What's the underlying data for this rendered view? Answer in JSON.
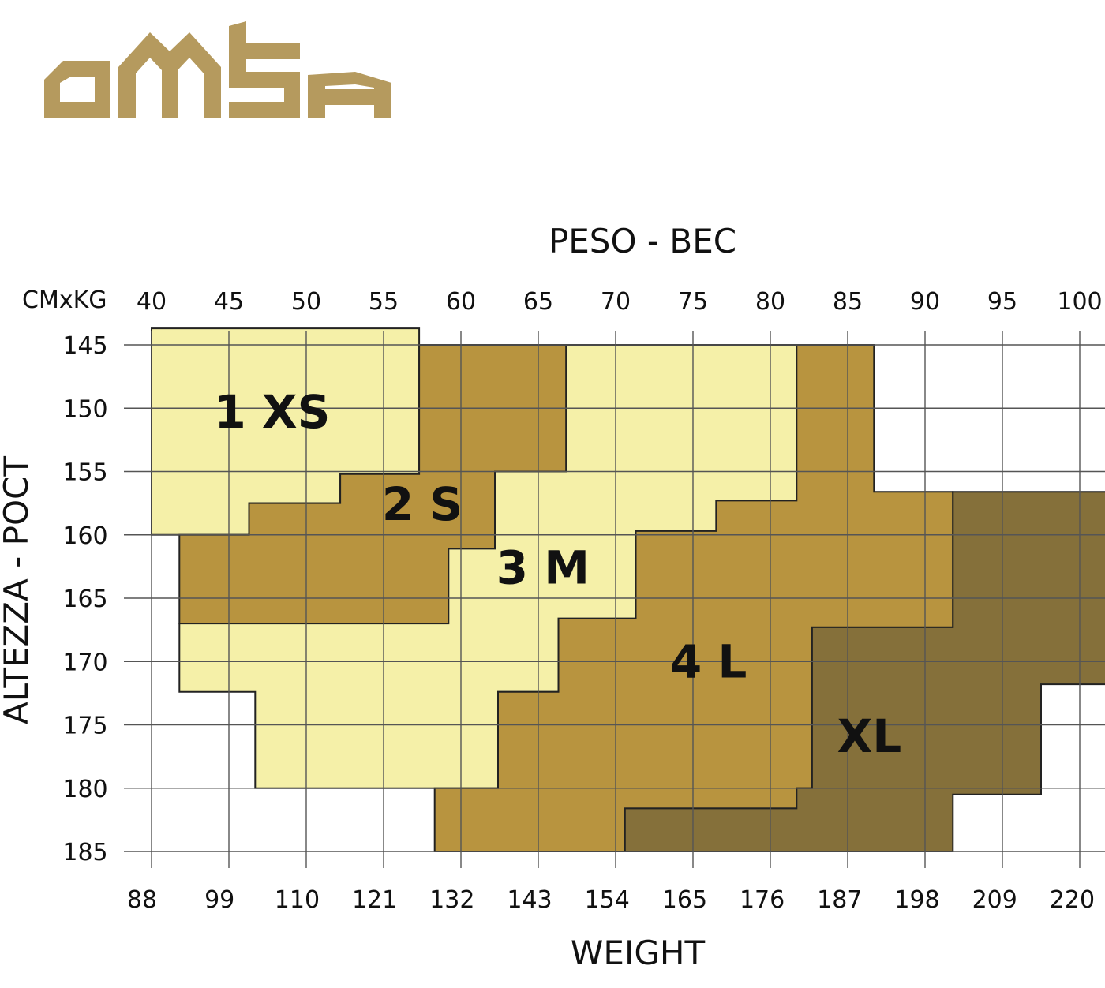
{
  "brand": {
    "logo_text": "OMSA",
    "logo_color": "#B59A5E"
  },
  "chart_data": {
    "type": "heatmap",
    "title": "",
    "top_axis_title": "PESO - BEC",
    "corner_label": "CMxKG",
    "bottom_axis_title": "WEIGHT",
    "y_axis_title": "ALTEZZA - POCT",
    "x_kg_ticks": [
      "40",
      "45",
      "50",
      "55",
      "60",
      "65",
      "70",
      "75",
      "80",
      "85",
      "90",
      "95",
      "100"
    ],
    "x_lb_ticks": [
      "88",
      "99",
      "110",
      "121",
      "132",
      "143",
      "154",
      "165",
      "176",
      "187",
      "198",
      "209",
      "220"
    ],
    "y_ticks": [
      "145",
      "150",
      "155",
      "160",
      "165",
      "170",
      "175",
      "180",
      "185"
    ],
    "xlim_kg": [
      40,
      100
    ],
    "ylim_cm": [
      145,
      185
    ],
    "grid": true,
    "colors": {
      "light": "#F5F0A8",
      "gold": "#B8943F",
      "dark": "#85703A",
      "grid": "#555555"
    },
    "sizes": [
      {
        "label": "1 XS",
        "color": "light",
        "polygon": [
          [
            40,
            143.7
          ],
          [
            57.3,
            143.7
          ],
          [
            57.3,
            155.2
          ],
          [
            52.2,
            155.2
          ],
          [
            52.2,
            157.5
          ],
          [
            46.3,
            157.5
          ],
          [
            46.3,
            160
          ],
          [
            40,
            160
          ]
        ]
      },
      {
        "label": "2 S",
        "color": "gold",
        "polygon": [
          [
            57.3,
            145
          ],
          [
            66.8,
            145
          ],
          [
            66.8,
            155
          ],
          [
            62.2,
            155
          ],
          [
            62.2,
            161.1
          ],
          [
            59.2,
            161.1
          ],
          [
            59.2,
            167
          ],
          [
            41.8,
            167
          ],
          [
            41.8,
            160
          ],
          [
            46.3,
            160
          ],
          [
            46.3,
            157.5
          ],
          [
            52.2,
            157.5
          ],
          [
            52.2,
            155.2
          ],
          [
            57.3,
            155.2
          ]
        ]
      },
      {
        "label": "3 M",
        "color": "light",
        "polygon": [
          [
            66.8,
            145
          ],
          [
            81.7,
            145
          ],
          [
            81.7,
            157.3
          ],
          [
            76.5,
            157.3
          ],
          [
            76.5,
            159.7
          ],
          [
            71.3,
            159.7
          ],
          [
            71.3,
            166.6
          ],
          [
            66.3,
            166.6
          ],
          [
            66.3,
            172.4
          ],
          [
            62.4,
            172.4
          ],
          [
            62.4,
            180
          ],
          [
            46.7,
            180
          ],
          [
            46.7,
            172.4
          ],
          [
            41.8,
            172.4
          ],
          [
            41.8,
            167
          ],
          [
            59.2,
            167
          ],
          [
            59.2,
            161.1
          ],
          [
            62.2,
            161.1
          ],
          [
            62.2,
            155
          ],
          [
            66.8,
            155
          ]
        ]
      },
      {
        "label": "4 L",
        "color": "gold",
        "polygon": [
          [
            81.7,
            145
          ],
          [
            86.7,
            145
          ],
          [
            86.7,
            156.6
          ],
          [
            91.8,
            156.6
          ],
          [
            91.8,
            167.3
          ],
          [
            82.7,
            167.3
          ],
          [
            82.7,
            180
          ],
          [
            81.7,
            180
          ],
          [
            81.7,
            181.6
          ],
          [
            70.6,
            181.6
          ],
          [
            70.6,
            185
          ],
          [
            58.3,
            185
          ],
          [
            58.3,
            180
          ],
          [
            62.4,
            180
          ],
          [
            62.4,
            172.4
          ],
          [
            66.3,
            172.4
          ],
          [
            66.3,
            166.6
          ],
          [
            71.3,
            166.6
          ],
          [
            71.3,
            159.7
          ],
          [
            76.5,
            159.7
          ],
          [
            76.5,
            157.3
          ],
          [
            81.7,
            157.3
          ]
        ]
      },
      {
        "label": "XL",
        "color": "dark",
        "polygon": [
          [
            91.8,
            156.6
          ],
          [
            101.8,
            156.6
          ],
          [
            101.8,
            171.8
          ],
          [
            97.5,
            171.8
          ],
          [
            97.5,
            180.5
          ],
          [
            91.8,
            180.5
          ],
          [
            91.8,
            185
          ],
          [
            70.6,
            185
          ],
          [
            70.6,
            181.6
          ],
          [
            81.7,
            181.6
          ],
          [
            81.7,
            180
          ],
          [
            82.7,
            180
          ],
          [
            82.7,
            167.3
          ],
          [
            91.8,
            167.3
          ]
        ]
      }
    ],
    "label_positions": {
      "1 XS": [
        47.8,
        150.3
      ],
      "2 S": [
        57.5,
        157.6
      ],
      "3 M": [
        65.3,
        162.6
      ],
      "4 L": [
        76.0,
        170.0
      ],
      "XL": [
        86.4,
        175.9
      ]
    }
  }
}
